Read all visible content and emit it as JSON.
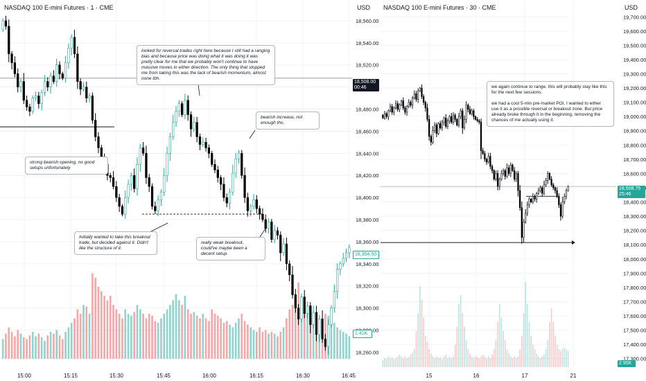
{
  "colors": {
    "up": "#26a69a",
    "down": "#000000",
    "vol_up": "#80cbc4",
    "vol_down": "#ef9a9a",
    "grid": "#f0f3fa",
    "axis_text": "#131722"
  },
  "left": {
    "title": "NASDAQ 100 E-mini Futures · 1 · CME",
    "currency": "USD",
    "price_tag": {
      "price": "18,508.00",
      "countdown": "00:46"
    },
    "green_tag": "18,354.50",
    "volume_tag": "1.41K",
    "notes": [
      {
        "id": "note-top",
        "text": "looked for reversal trades right here because I still had a ranging bias and because price was doing what it was doing it was pretty clear for me that we probably won't continue to have massive moves in either direction. The only thing that stopped me from taking this was the lack of bearish momentum, almost none tbh."
      },
      {
        "id": "note-bearish",
        "text": "bearish increase, not enough tho."
      },
      {
        "id": "note-opening",
        "text": "strong bearish opening, no good setups unfortunately"
      },
      {
        "id": "note-breakout",
        "text": "Initially wanted to take this breakout trade, but decided against it. Didn't like the structure of it."
      },
      {
        "id": "note-weak",
        "text": "really weak breakout, could've maybe been a decent setup."
      }
    ]
  },
  "right": {
    "title": "NASDAQ 100 E-mini Futures · 30 · CME",
    "currency": "USD",
    "price_tag": {
      "price": "18,508.75",
      "countdown": "25:46"
    },
    "volume_tag": "2.95K",
    "note": {
      "p1": "we again continue to range, this will probably stay like this for the next few sessions.",
      "p2": "we had a cool 5-min pre-market POI, I wanted to either use it as a possible reversal or breakout zone. But price already broke through it in the beginning, removing the chances of me actually using it."
    }
  },
  "chart_data": [
    {
      "type": "candlestick",
      "title": "NASDAQ 100 E-mini Futures · 1 · CME",
      "x_ticks": [
        "15:00",
        "15:15",
        "15:30",
        "15:45",
        "16:00",
        "16:15",
        "16:30",
        "16:45"
      ],
      "y_ticks": [
        "18,560.00",
        "18,540.00",
        "18,520.00",
        "18,500.00",
        "18,480.00",
        "18,460.00",
        "18,440.00",
        "18,420.00",
        "18,400.00",
        "18,380.00",
        "18,360.00",
        "18,340.00",
        "18,320.00",
        "18,300.00",
        "18,280.00",
        "18,260.00"
      ],
      "ylim": [
        18254,
        18570
      ],
      "last_price": 18508.0,
      "close_shown": 18354.5,
      "volume_shown": "1.41K",
      "levels": [
        18508,
        18464,
        18385
      ],
      "series": [
        {
          "name": "close",
          "values": [
            18560,
            18555,
            18530,
            18522,
            18512,
            18500,
            18505,
            18488,
            18482,
            18478,
            18490,
            18492,
            18485,
            18495,
            18505,
            18500,
            18510,
            18505,
            18520,
            18512,
            18508,
            18522,
            18535,
            18545,
            18530,
            18505,
            18498,
            18500,
            18490,
            18492,
            18470,
            18455,
            18445,
            18435,
            18430,
            18420,
            18418,
            18410,
            18400,
            18392,
            18385,
            18400,
            18412,
            18420,
            18408,
            18430,
            18445,
            18440,
            18418,
            18410,
            18392,
            18388,
            18398,
            18405,
            18420,
            18440,
            18455,
            18468,
            18478,
            18485,
            18475,
            18488,
            18475,
            18462,
            18468,
            18455,
            18448,
            18450,
            18445,
            18440,
            18430,
            18425,
            18418,
            18412,
            18400,
            18395,
            18405,
            18422,
            18435,
            18440,
            18420,
            18400,
            18388,
            18392,
            18398,
            18390,
            18385,
            18380,
            18372,
            18378,
            18362,
            18370,
            18366,
            18350,
            18358,
            18340,
            18330,
            18312,
            18300,
            18290,
            18310,
            18295,
            18302,
            18285,
            18296,
            18276,
            18290,
            18272,
            18265,
            18285,
            18300,
            18315,
            18335,
            18340,
            18345,
            18350,
            18355
          ]
        },
        {
          "name": "volume",
          "values": [
            0.22,
            0.28,
            0.35,
            0.3,
            0.25,
            0.32,
            0.28,
            0.24,
            0.22,
            0.26,
            0.3,
            0.25,
            0.28,
            0.24,
            0.2,
            0.26,
            0.3,
            0.28,
            0.32,
            0.26,
            0.22,
            0.3,
            0.35,
            0.4,
            0.45,
            0.55,
            0.5,
            0.6,
            0.58,
            0.5,
            0.95,
            0.9,
            0.8,
            0.75,
            0.7,
            0.65,
            0.7,
            0.6,
            0.55,
            0.5,
            0.45,
            0.55,
            0.5,
            0.48,
            0.52,
            0.6,
            0.55,
            0.5,
            0.45,
            0.5,
            0.48,
            0.42,
            0.4,
            0.45,
            0.5,
            0.55,
            0.6,
            0.65,
            0.72,
            0.65,
            0.6,
            0.7,
            0.55,
            0.5,
            0.52,
            0.48,
            0.45,
            0.5,
            0.45,
            0.42,
            0.55,
            0.5,
            0.48,
            0.45,
            0.4,
            0.42,
            0.38,
            0.35,
            0.4,
            0.45,
            0.5,
            0.42,
            0.38,
            0.35,
            0.32,
            0.3,
            0.35,
            0.3,
            0.32,
            0.28,
            0.3,
            0.28,
            0.25,
            0.3,
            0.35,
            0.45,
            0.55,
            0.6,
            0.72,
            0.85,
            0.68,
            0.6,
            0.52,
            0.48,
            0.45,
            0.42,
            0.4,
            0.45,
            0.5,
            0.48,
            0.45,
            0.4,
            0.35,
            0.32,
            0.3,
            0.28,
            0.25
          ]
        }
      ]
    },
    {
      "type": "candlestick",
      "title": "NASDAQ 100 E-mini Futures · 30 · CME",
      "x_ticks": [
        "15",
        "16",
        "17",
        "21"
      ],
      "y_ticks": [
        "19,700.00",
        "19,600.00",
        "19,500.00",
        "19,400.00",
        "19,300.00",
        "19,200.00",
        "19,100.00",
        "19,000.00",
        "18,900.00",
        "18,800.00",
        "18,700.00",
        "18,600.00",
        "18,500.00",
        "18,400.00",
        "18,300.00",
        "18,200.00",
        "18,100.00",
        "18,000.00",
        "17,900.00",
        "17,800.00",
        "17,700.00",
        "17,600.00",
        "17,500.00",
        "17,400.00",
        "17,300.00"
      ],
      "ylim": [
        17240,
        19750
      ],
      "last_price": 18508.75,
      "volume_shown": "2.95K",
      "levels": [
        18115
      ],
      "series": [
        {
          "name": "close",
          "values": [
            18990,
            19020,
            19000,
            19040,
            19070,
            19030,
            19060,
            19090,
            19050,
            19080,
            19110,
            19060,
            19030,
            19070,
            19100,
            19080,
            19130,
            19160,
            19120,
            19180,
            19200,
            19140,
            19100,
            19060,
            18980,
            18860,
            18820,
            18900,
            18940,
            18880,
            18950,
            18920,
            18960,
            18990,
            18930,
            18970,
            19000,
            18960,
            19010,
            18980,
            18940,
            19000,
            19040,
            18920,
            18980,
            19080,
            19050,
            19020,
            19040,
            19000,
            18980,
            18970,
            18960,
            18760,
            18740,
            18700,
            18680,
            18720,
            18650,
            18620,
            18560,
            18600,
            18510,
            18560,
            18600,
            18620,
            18580,
            18640,
            18600,
            18660,
            18620,
            18560,
            18600,
            18480,
            18360,
            18150,
            18260,
            18320,
            18380,
            18420,
            18400,
            18440,
            18420,
            18460,
            18480,
            18500,
            18460,
            18520,
            18550,
            18600,
            18560,
            18520,
            18500,
            18480,
            18440,
            18380,
            18300,
            18400,
            18440,
            18480,
            18508
          ]
        },
        {
          "name": "volume",
          "values": [
            0.08,
            0.1,
            0.09,
            0.12,
            0.1,
            0.11,
            0.09,
            0.1,
            0.12,
            0.14,
            0.12,
            0.1,
            0.12,
            0.1,
            0.11,
            0.14,
            0.16,
            0.2,
            0.4,
            0.6,
            0.9,
            0.75,
            0.55,
            0.35,
            0.28,
            0.2,
            0.15,
            0.12,
            0.1,
            0.12,
            0.1,
            0.11,
            0.09,
            0.12,
            0.14,
            0.1,
            0.12,
            0.1,
            0.12,
            0.25,
            0.45,
            0.7,
            0.8,
            0.6,
            0.45,
            0.3,
            0.2,
            0.15,
            0.12,
            0.1,
            0.12,
            0.11,
            0.1,
            0.12,
            0.14,
            0.12,
            0.1,
            0.12,
            0.1,
            0.14,
            0.2,
            0.3,
            0.5,
            0.7,
            0.55,
            0.4,
            0.3,
            0.2,
            0.15,
            0.12,
            0.1,
            0.12,
            0.1,
            0.12,
            0.2,
            0.35,
            0.6,
            0.95,
            0.7,
            0.5,
            0.35,
            0.25,
            0.2,
            0.15,
            0.12,
            0.1,
            0.12,
            0.14,
            0.2,
            0.3,
            0.5,
            0.65,
            0.5,
            0.35,
            0.25,
            0.2,
            0.18,
            0.2,
            0.22,
            0.2,
            0.18
          ]
        }
      ]
    }
  ]
}
